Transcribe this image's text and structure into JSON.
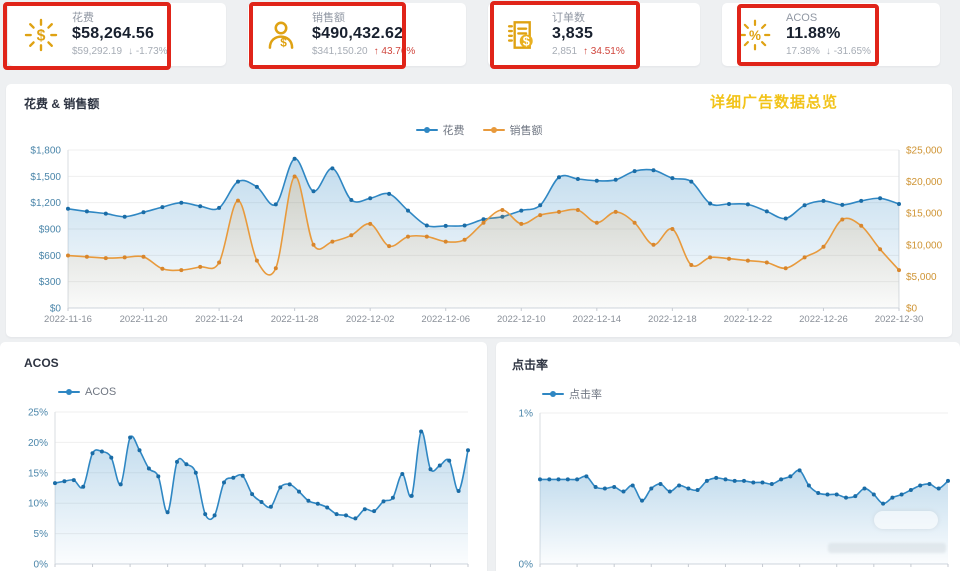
{
  "kpi_cards": [
    {
      "label": "花费",
      "value": "$58,264.56",
      "prev": "$59,292.19",
      "delta_text": "↓ -1.73%",
      "delta_color": "#a6acb5",
      "icon": "spend-sunburst-icon"
    },
    {
      "label": "销售额",
      "value": "$490,432.62",
      "prev": "$341,150.20",
      "delta_text": "↑ 43.76%",
      "delta_color": "#d0453c",
      "icon": "customer-dollar-icon"
    },
    {
      "label": "订单数",
      "value": "3,835",
      "prev": "2,851",
      "delta_text": "↑ 34.51%",
      "delta_color": "#d0453c",
      "icon": "order-receipt-icon"
    },
    {
      "label": "ACOS",
      "value": "11.88%",
      "prev": "17.38%",
      "delta_text": "↓ -31.65%",
      "delta_color": "#a6acb5",
      "icon": "acos-sunburst-icon"
    }
  ],
  "overlay_title": "详细广告数据总览",
  "colors": {
    "spend_blue": "#2f87c3",
    "sales_orange": "#e89a3c",
    "annotation_red": "#e02419",
    "gold_icon": "#dfa213",
    "overlay_yellow": "#f2c318"
  },
  "chart_data": [
    {
      "type": "area",
      "title": "花费 & 销售额",
      "legend_position": "top-center",
      "categories": [
        "2022-11-16",
        "2022-11-17",
        "2022-11-18",
        "2022-11-19",
        "2022-11-20",
        "2022-11-21",
        "2022-11-22",
        "2022-11-23",
        "2022-11-24",
        "2022-11-25",
        "2022-11-26",
        "2022-11-27",
        "2022-11-28",
        "2022-11-29",
        "2022-11-30",
        "2022-12-01",
        "2022-12-02",
        "2022-12-03",
        "2022-12-04",
        "2022-12-05",
        "2022-12-06",
        "2022-12-07",
        "2022-12-08",
        "2022-12-09",
        "2022-12-10",
        "2022-12-11",
        "2022-12-12",
        "2022-12-13",
        "2022-12-14",
        "2022-12-15",
        "2022-12-16",
        "2022-12-17",
        "2022-12-18",
        "2022-12-19",
        "2022-12-20",
        "2022-12-21",
        "2022-12-22",
        "2022-12-23",
        "2022-12-24",
        "2022-12-25",
        "2022-12-26",
        "2022-12-27",
        "2022-12-28",
        "2022-12-29",
        "2022-12-30"
      ],
      "x_tick_labels": [
        "2022-11-16",
        "2022-11-20",
        "2022-11-24",
        "2022-11-28",
        "2022-12-02",
        "2022-12-06",
        "2022-12-10",
        "2022-12-14",
        "2022-12-18",
        "2022-12-22",
        "2022-12-26",
        "2022-12-30"
      ],
      "left_axis": {
        "ticks": [
          "$1,800",
          "$1,500",
          "$1,200",
          "$900",
          "$600",
          "$300",
          "$0"
        ],
        "max": 1800
      },
      "right_axis": {
        "ticks": [
          "$25,000",
          "$20,000",
          "$15,000",
          "$10,000",
          "$5,000",
          "$0"
        ],
        "max": 25000
      },
      "series": [
        {
          "name": "花费",
          "axis": "left",
          "color": "#2f87c3",
          "values": [
            1130,
            1100,
            1075,
            1040,
            1090,
            1150,
            1200,
            1160,
            1140,
            1440,
            1380,
            1180,
            1700,
            1330,
            1590,
            1230,
            1250,
            1300,
            1110,
            940,
            935,
            940,
            1010,
            1040,
            1110,
            1170,
            1490,
            1470,
            1450,
            1460,
            1560,
            1570,
            1480,
            1440,
            1190,
            1185,
            1180,
            1100,
            1020,
            1170,
            1220,
            1175,
            1220,
            1250,
            1185
          ]
        },
        {
          "name": "销售额",
          "axis": "right",
          "color": "#e89a3c",
          "values": [
            8300,
            8100,
            7900,
            8000,
            8100,
            6200,
            6000,
            6500,
            7200,
            17000,
            7500,
            6300,
            20800,
            10000,
            10500,
            11500,
            13300,
            9800,
            11300,
            11300,
            10500,
            10800,
            13500,
            15500,
            13300,
            14700,
            15200,
            15500,
            13500,
            15200,
            13500,
            10000,
            12500,
            6800,
            8000,
            7800,
            7500,
            7200,
            6300,
            8000,
            9700,
            14000,
            13000,
            9300,
            6000
          ]
        }
      ]
    },
    {
      "type": "area",
      "title": "ACOS",
      "legend_position": "top-left",
      "x_labels_visible": false,
      "left_axis": {
        "ticks": [
          "25%",
          "20%",
          "15%",
          "10%",
          "5%",
          "0%"
        ],
        "max": 25
      },
      "series": [
        {
          "name": "ACOS",
          "axis": "left",
          "color": "#2f87c3",
          "values": [
            13.3,
            13.6,
            13.8,
            12.7,
            18.2,
            18.5,
            17.5,
            13.1,
            20.8,
            18.7,
            15.7,
            14.4,
            8.5,
            16.8,
            16.4,
            15.0,
            8.2,
            8.0,
            13.4,
            14.2,
            14.5,
            11.5,
            10.2,
            9.4,
            12.6,
            13.1,
            11.9,
            10.4,
            9.9,
            9.3,
            8.2,
            8.0,
            7.5,
            9.0,
            8.7,
            10.3,
            10.9,
            14.8,
            11.2,
            21.8,
            15.6,
            16.2,
            17.0,
            12.0,
            18.7
          ]
        }
      ]
    },
    {
      "type": "area",
      "title": "点击率",
      "legend_position": "top-left",
      "x_labels_visible": false,
      "left_axis": {
        "ticks": [
          "1%",
          "0%"
        ],
        "max": 1
      },
      "series": [
        {
          "name": "点击率",
          "axis": "left",
          "color": "#2f87c3",
          "values": [
            0.56,
            0.56,
            0.56,
            0.56,
            0.56,
            0.58,
            0.51,
            0.5,
            0.51,
            0.48,
            0.52,
            0.42,
            0.5,
            0.53,
            0.48,
            0.52,
            0.5,
            0.49,
            0.55,
            0.57,
            0.56,
            0.55,
            0.55,
            0.54,
            0.54,
            0.53,
            0.56,
            0.58,
            0.62,
            0.52,
            0.47,
            0.46,
            0.46,
            0.44,
            0.45,
            0.5,
            0.46,
            0.4,
            0.44,
            0.46,
            0.49,
            0.52,
            0.53,
            0.5,
            0.55
          ]
        }
      ]
    }
  ]
}
